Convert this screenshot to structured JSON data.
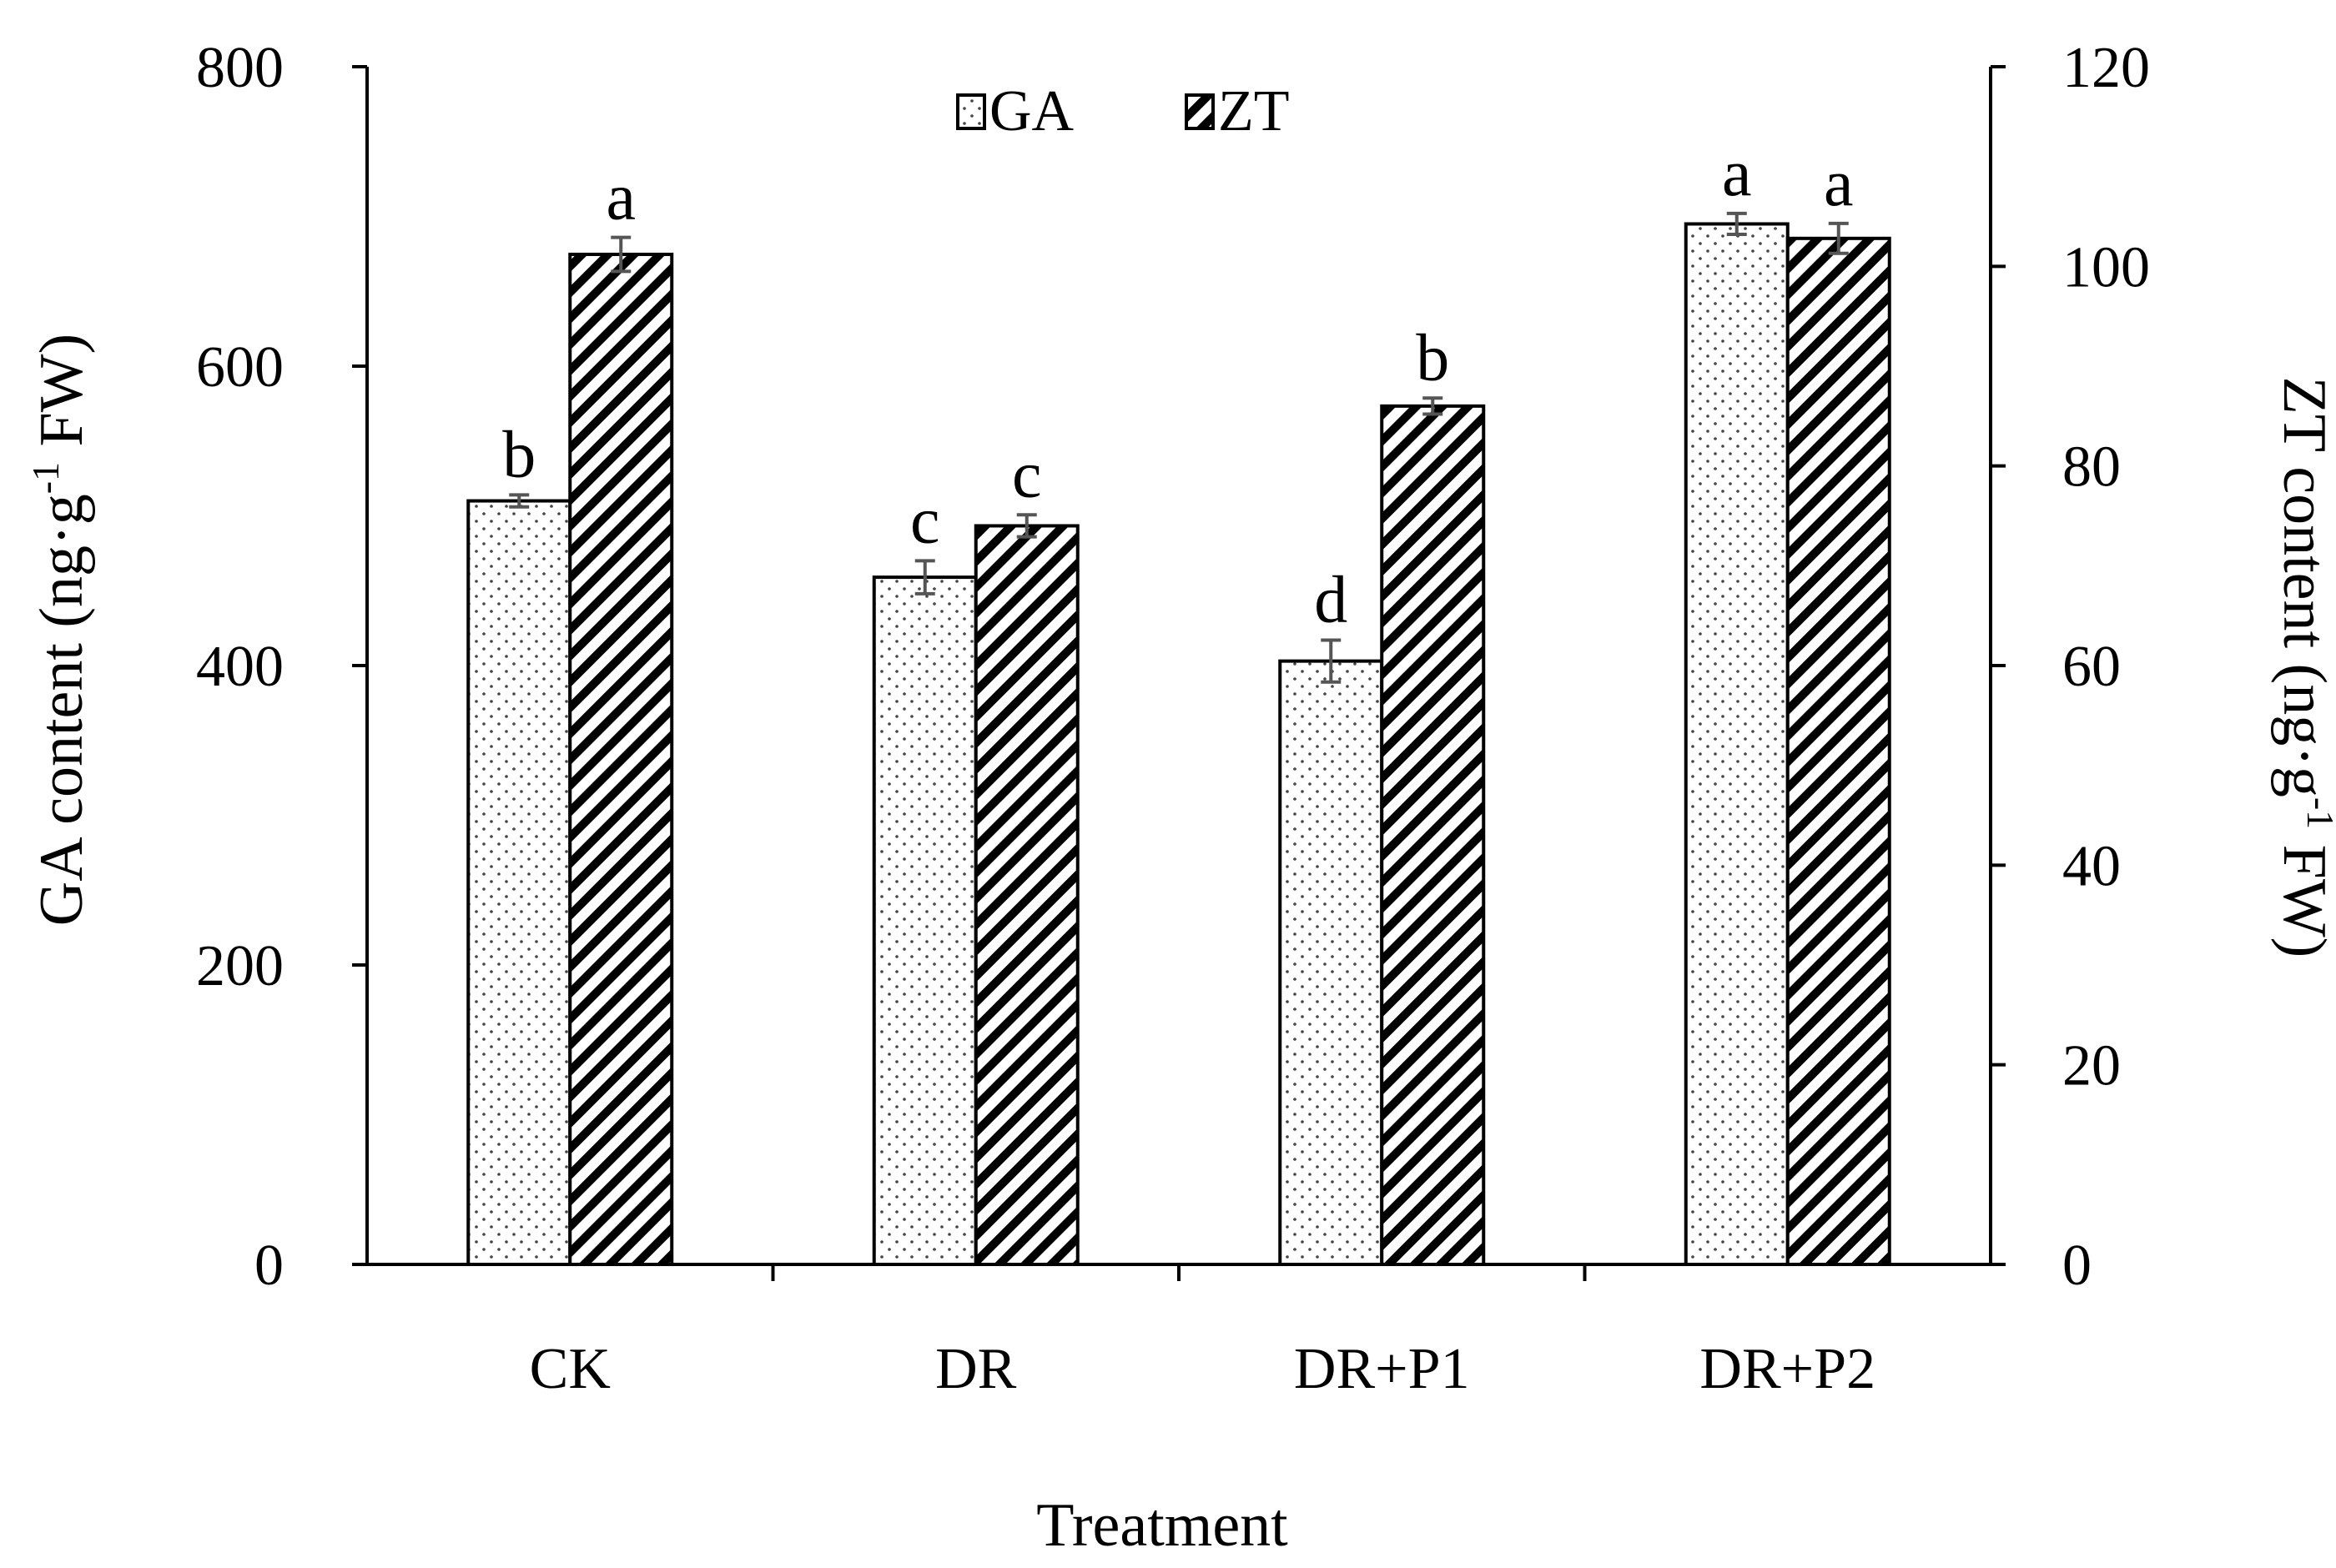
{
  "chart_data": {
    "type": "bar",
    "xlabel": "Treatment",
    "categories": [
      "CK",
      "DR",
      "DR+P1",
      "DR+P2"
    ],
    "y_left": {
      "label_prefix": "GA content (ng·g",
      "label_sup": "-1",
      "label_suffix": " FW)",
      "ylim": [
        0,
        800
      ],
      "ticks": [
        0,
        200,
        400,
        600,
        800
      ]
    },
    "y_right": {
      "label_prefix": "ZT content (ng·g",
      "label_sup": "-1",
      "label_suffix": " FW)",
      "ylim": [
        0,
        120
      ],
      "ticks": [
        0,
        20,
        40,
        60,
        80,
        100,
        120
      ]
    },
    "series": [
      {
        "name": "GA",
        "axis": "left",
        "pattern": "dots",
        "values": [
          510,
          459,
          403,
          695
        ],
        "errors": [
          4,
          11,
          14,
          7
        ],
        "letters": [
          "b",
          "c",
          "d",
          "a"
        ]
      },
      {
        "name": "ZT",
        "axis": "right",
        "pattern": "hatch",
        "values": [
          101.2,
          74,
          86,
          102.8
        ],
        "errors": [
          1.7,
          1.1,
          0.8,
          1.5
        ],
        "letters": [
          "a",
          "c",
          "b",
          "a"
        ]
      }
    ],
    "legend": {
      "placement": "top-center"
    },
    "grid": false
  }
}
